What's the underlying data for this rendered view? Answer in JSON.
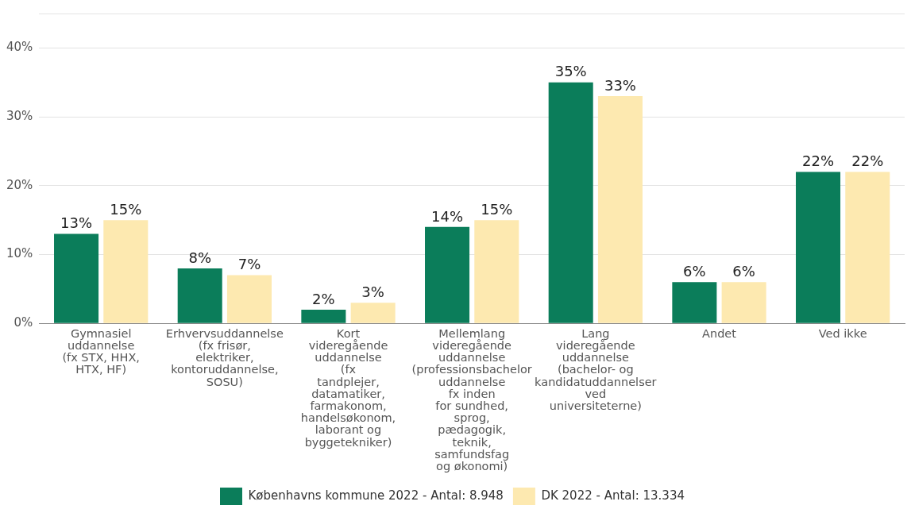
{
  "chart_data": {
    "type": "bar",
    "categories": [
      "Gymnasiel\nuddannelse\n(fx STX, HHX,\nHTX, HF)",
      "Erhvervsuddannelse\n(fx frisør,\nelektriker,\nkontoruddannelse,\nSOSU)",
      "Kort\nvideregående\nuddannelse\n(fx\ntandplejer,\ndatamatiker,\nfarmakonom,\nhandelsøkonom,\nlaborant og\nbyggetekniker)",
      "Mellemlang\nvideregående\nuddannelse\n(professionsbachelor\nuddannelse\nfx inden\nfor sundhed,\nsprog,\npædagogik,\nteknik,\nsamfundsfag\nog økonomi)",
      "Lang\nvideregående\nuddannelse\n(bachelor- og\nkandidatuddannelser\nved\nuniversiteterne)",
      "Andet",
      "Ved ikke"
    ],
    "series": [
      {
        "name": "Københavns kommune 2022 - Antal: 8.948",
        "color": "#0b7d5a",
        "values": [
          13,
          8,
          2,
          14,
          35,
          6,
          22
        ],
        "value_labels": [
          "13%",
          "8%",
          "2%",
          "14%",
          "35%",
          "6%",
          "22%"
        ]
      },
      {
        "name": "DK 2022 - Antal: 13.334",
        "color": "#fde9b0",
        "values": [
          15,
          7,
          3,
          15,
          33,
          6,
          22
        ],
        "value_labels": [
          "15%",
          "7%",
          "3%",
          "15%",
          "33%",
          "6%",
          "22%"
        ]
      }
    ],
    "ylim": [
      0,
      45
    ],
    "yticks": [
      {
        "value": 0,
        "label": "0%"
      },
      {
        "value": 10,
        "label": "10%"
      },
      {
        "value": 20,
        "label": "20%"
      },
      {
        "value": 30,
        "label": "30%"
      },
      {
        "value": 40,
        "label": "40%"
      },
      {
        "value": 45,
        "label": null
      }
    ],
    "grid": "y",
    "legend": "bottom"
  }
}
